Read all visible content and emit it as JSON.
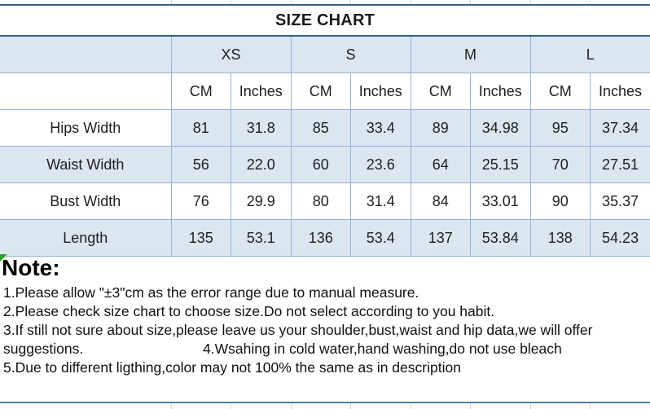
{
  "title": "SIZE CHART",
  "colors": {
    "cell_blue": "#dce6f1",
    "grid_border": "#95b3d7",
    "title_border": "#366092",
    "bottom_rule": "#4d7e9a",
    "error_triangle_green": "#2da12d"
  },
  "table": {
    "size_headers": [
      "XS",
      "S",
      "M",
      "L"
    ],
    "unit_headers": [
      "CM",
      "Inches",
      "CM",
      "Inches",
      "CM",
      "Inches",
      "CM",
      "Inches"
    ],
    "rows": [
      {
        "label": "Hips Width",
        "label_bg": "white",
        "data_bg": "blue",
        "values": [
          "81",
          "31.8",
          "85",
          "33.4",
          "89",
          "34.98",
          "95",
          "37.34"
        ]
      },
      {
        "label": "Waist Width",
        "label_bg": "blue",
        "data_bg": "blue",
        "values": [
          "56",
          "22.0",
          "60",
          "23.6",
          "64",
          "25.15",
          "70",
          "27.51"
        ]
      },
      {
        "label": "Bust Width",
        "label_bg": "white",
        "data_bg": "white",
        "values": [
          "76",
          "29.9",
          "80",
          "31.4",
          "84",
          "33.01",
          "90",
          "35.37"
        ]
      },
      {
        "label": "Length",
        "label_bg": "blue",
        "data_bg": "blue",
        "values": [
          "135",
          "53.1",
          "136",
          "53.4",
          "137",
          "53.84",
          "138",
          "54.23"
        ]
      }
    ]
  },
  "notes": {
    "heading": "Note:",
    "line1": "1.Please allow \"±3\"cm as the error range due to manual measure.",
    "line2": "2.Please check size chart to choose size.Do not select according to you habit.",
    "line3": "3.If still not sure about size,please leave us your shoulder,bust,waist and hip data,we will offer",
    "line4a": "suggestions.",
    "line4b": "4.Wsahing in cold water,hand washing,do not use bleach",
    "line5": "5.Due to different ligthing,color may not 100% the same as in description"
  },
  "chart_data": {
    "type": "table",
    "title": "SIZE CHART",
    "column_groups": [
      "XS",
      "S",
      "M",
      "L"
    ],
    "unit_columns": [
      "CM",
      "Inches"
    ],
    "row_labels": [
      "Hips Width",
      "Waist Width",
      "Bust Width",
      "Length"
    ],
    "series": [
      {
        "name": "Hips Width",
        "values": [
          81,
          31.8,
          85,
          33.4,
          89,
          34.98,
          95,
          37.34
        ]
      },
      {
        "name": "Waist Width",
        "values": [
          56,
          22.0,
          60,
          23.6,
          64,
          25.15,
          70,
          27.51
        ]
      },
      {
        "name": "Bust Width",
        "values": [
          76,
          29.9,
          80,
          31.4,
          84,
          33.01,
          90,
          35.37
        ]
      },
      {
        "name": "Length",
        "values": [
          135,
          53.1,
          136,
          53.4,
          137,
          53.84,
          138,
          54.23
        ]
      }
    ]
  }
}
